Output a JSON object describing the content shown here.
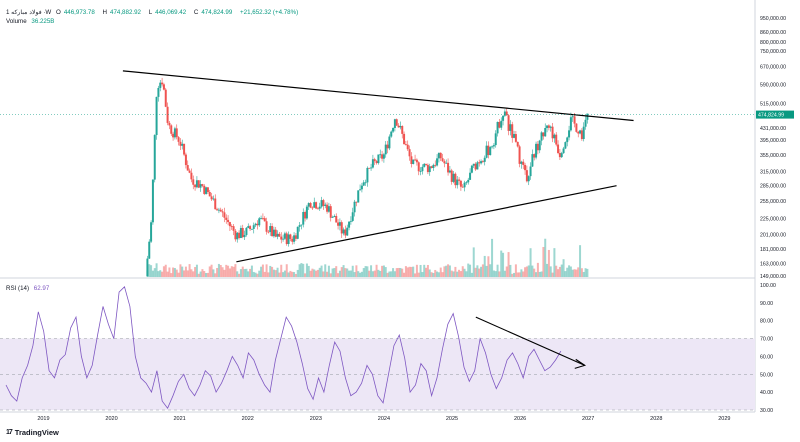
{
  "header": {
    "symbol": "1 فولاد مبارکه ·W",
    "open_label": "O",
    "open": "446,973.78",
    "high_label": "H",
    "high": "474,882.92",
    "low_label": "L",
    "low": "446,069.42",
    "close_label": "C",
    "close": "474,824.99",
    "change": "+21,652.32 (+4.78%)",
    "volume_label": "Volume",
    "volume": "36.225B",
    "rsi_label": "RSI (14)",
    "rsi_value": "62.97"
  },
  "watermark": {
    "logo": "17",
    "text": "TradingView"
  },
  "colors": {
    "up": "#26a69a",
    "down": "#ef5350",
    "rsi": "#7e57c2",
    "rsi_band": "#ede7f6",
    "price_tag": "#089981"
  },
  "chart_data": [
    {
      "type": "candlestick",
      "timeframe": "weekly",
      "price_scale": "log",
      "y_ticks": [
        "950,000.00",
        "860,000.00",
        "800,000.00",
        "750,000.00",
        "670,000.00",
        "590,000.00",
        "515,000.00",
        "431,000.00",
        "395,000.00",
        "355,000.00",
        "315,000.00",
        "285,000.00",
        "255,000.00",
        "225,000.00",
        "201,000.00",
        "181,000.00",
        "163,000.00",
        "149,000.00"
      ],
      "last_price_label": "474,824.99",
      "x_ticks": [
        "2019",
        "2020",
        "2021",
        "2022",
        "2023",
        "2024",
        "2025",
        "2026",
        "2027",
        "2028",
        "2029"
      ],
      "series_path": [
        [
          "2020-07",
          149000
        ],
        [
          "2020-08",
          220000
        ],
        [
          "2020-09",
          590000
        ],
        [
          "2020-10",
          610000
        ],
        [
          "2020-11",
          440000
        ],
        [
          "2021-01",
          395000
        ],
        [
          "2021-03",
          300000
        ],
        [
          "2021-05",
          285000
        ],
        [
          "2021-08",
          240000
        ],
        [
          "2021-11",
          200000
        ],
        [
          "2022-01",
          205000
        ],
        [
          "2022-03",
          225000
        ],
        [
          "2022-06",
          196000
        ],
        [
          "2022-09",
          195000
        ],
        [
          "2022-12",
          255000
        ],
        [
          "2023-03",
          245000
        ],
        [
          "2023-06",
          200000
        ],
        [
          "2023-09",
          290000
        ],
        [
          "2023-11",
          330000
        ],
        [
          "2024-01",
          355000
        ],
        [
          "2024-03",
          470000
        ],
        [
          "2024-04",
          420000
        ],
        [
          "2024-06",
          330000
        ],
        [
          "2024-09",
          325000
        ],
        [
          "2024-11",
          350000
        ],
        [
          "2025-01",
          305000
        ],
        [
          "2025-03",
          275000
        ],
        [
          "2025-05",
          330000
        ],
        [
          "2025-08",
          380000
        ],
        [
          "2025-10",
          490000
        ],
        [
          "2025-12",
          395000
        ],
        [
          "2026-02",
          300000
        ],
        [
          "2026-04",
          380000
        ],
        [
          "2026-06",
          450000
        ],
        [
          "2026-08",
          360000
        ],
        [
          "2026-10",
          455000
        ],
        [
          "2026-12",
          415000
        ],
        [
          "2027-01",
          474825
        ]
      ],
      "trendlines": [
        {
          "from": [
            "2020-03",
            650000
          ],
          "to": [
            "2027-09",
            455000
          ]
        },
        {
          "from": [
            "2021-11",
            165000
          ],
          "to": [
            "2027-06",
            285000
          ]
        }
      ],
      "volume": {
        "label": "Volume",
        "last": "36.225B"
      }
    },
    {
      "type": "line",
      "title": "RSI (14)",
      "ylim": [
        30,
        100
      ],
      "y_ticks": [
        100,
        90,
        80,
        70,
        60,
        50,
        40,
        30
      ],
      "bands": [
        30,
        50,
        70
      ],
      "series": [
        {
          "name": "RSI (14)",
          "values": [
            44,
            38,
            35,
            48,
            55,
            66,
            85,
            74,
            52,
            48,
            58,
            61,
            76,
            82,
            60,
            48,
            55,
            72,
            88,
            78,
            70,
            96,
            99,
            88,
            60,
            48,
            45,
            40,
            52,
            35,
            31,
            38,
            46,
            50,
            42,
            38,
            44,
            52,
            49,
            40,
            45,
            52,
            60,
            55,
            48,
            62,
            58,
            50,
            44,
            40,
            58,
            70,
            82,
            77,
            68,
            56,
            42,
            36,
            48,
            40,
            55,
            68,
            63,
            48,
            38,
            40,
            45,
            55,
            50,
            38,
            34,
            50,
            66,
            72,
            59,
            40,
            44,
            56,
            52,
            38,
            48,
            64,
            78,
            84,
            71,
            54,
            46,
            52,
            70,
            62,
            50,
            42,
            48,
            58,
            62,
            56,
            48,
            60,
            64,
            58,
            52,
            54,
            58,
            63
          ]
        }
      ],
      "trendline": {
        "from_rsi": 82,
        "to_rsi": 55,
        "arrow": true
      }
    }
  ]
}
